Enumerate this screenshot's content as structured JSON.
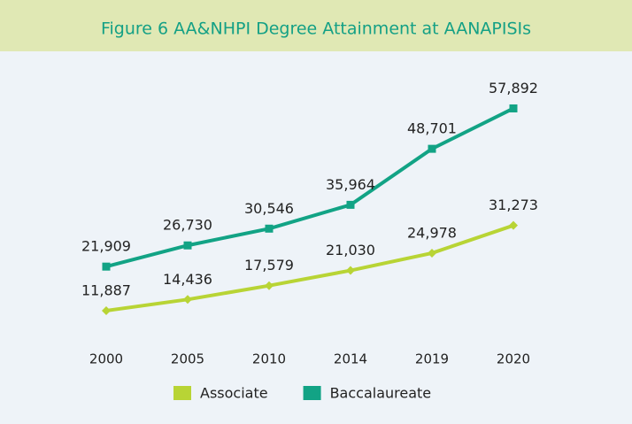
{
  "chart_data": {
    "type": "line",
    "title": "Figure 6 AA&NHPI Degree Attainment at AANAPISIs",
    "categories": [
      "2000",
      "2005",
      "2010",
      "2014",
      "2019",
      "2020"
    ],
    "series": [
      {
        "name": "Associate",
        "color": "#b8d435",
        "marker": "diamond",
        "values": [
          11887,
          14436,
          17579,
          21030,
          24978,
          31273
        ],
        "value_labels": [
          "11,887",
          "14,436",
          "17,579",
          "21,030",
          "24,978",
          "31,273"
        ]
      },
      {
        "name": "Baccalaureate",
        "color": "#12a385",
        "marker": "square",
        "values": [
          21909,
          26730,
          30546,
          35964,
          48701,
          57892
        ],
        "value_labels": [
          "21,909",
          "26,730",
          "30,546",
          "35,964",
          "48,701",
          "57,892"
        ]
      }
    ],
    "ylim": [
      0,
      60000
    ],
    "legend": "bottom"
  }
}
